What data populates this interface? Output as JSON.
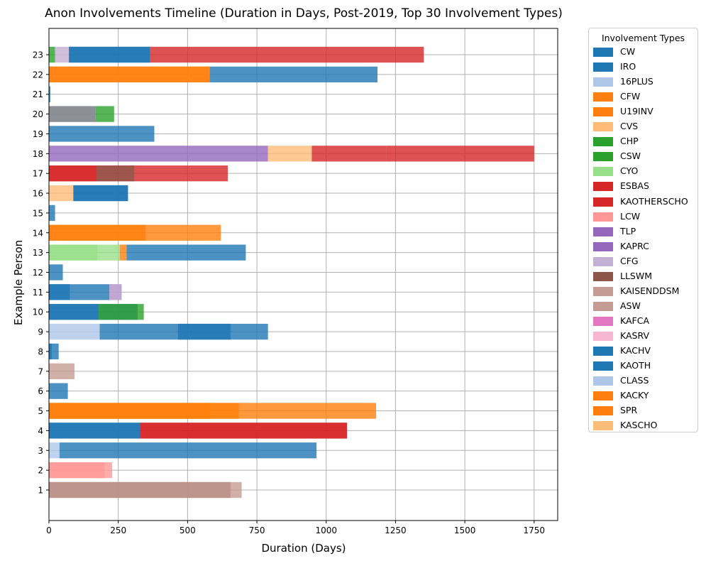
{
  "chart_data": {
    "type": "bar",
    "orientation": "horizontal-stacked-overlap",
    "title": "Anon Involvements Timeline (Duration in Days, Post-2019, Top 30 Involvement Types)",
    "xlabel": "Duration (Days)",
    "ylabel": "Example Person",
    "xlim": [
      0,
      1835
    ],
    "xticks": [
      0,
      250,
      500,
      750,
      1000,
      1250,
      1500,
      1750
    ],
    "categories": [
      "1",
      "2",
      "3",
      "4",
      "5",
      "6",
      "7",
      "8",
      "9",
      "10",
      "11",
      "12",
      "13",
      "14",
      "15",
      "16",
      "17",
      "18",
      "19",
      "20",
      "21",
      "22",
      "23"
    ],
    "grid": true,
    "legend_title": "Involvement Types",
    "legend_position": "outside-right",
    "legend": [
      {
        "label": "CW",
        "color": "#1f77b4"
      },
      {
        "label": "IRO",
        "color": "#1f77b4"
      },
      {
        "label": "16PLUS",
        "color": "#aec7e8"
      },
      {
        "label": "CFW",
        "color": "#ff7f0e"
      },
      {
        "label": "U19INV",
        "color": "#ff7f0e"
      },
      {
        "label": "CVS",
        "color": "#ffbb78"
      },
      {
        "label": "CHP",
        "color": "#2ca02c"
      },
      {
        "label": "CSW",
        "color": "#2ca02c"
      },
      {
        "label": "CYO",
        "color": "#98df8a"
      },
      {
        "label": "ESBAS",
        "color": "#d62728"
      },
      {
        "label": "KAOTHERSCHO",
        "color": "#d62728"
      },
      {
        "label": "LCW",
        "color": "#ff9896"
      },
      {
        "label": "TLP",
        "color": "#9467bd"
      },
      {
        "label": "KAPRC",
        "color": "#9467bd"
      },
      {
        "label": "CFG",
        "color": "#c5b0d5"
      },
      {
        "label": "LLSWM",
        "color": "#8c564b"
      },
      {
        "label": "KAISENDDSM",
        "color": "#c49c94"
      },
      {
        "label": "ASW",
        "color": "#c49c94"
      },
      {
        "label": "KAFCA",
        "color": "#e377c2"
      },
      {
        "label": "KASRV",
        "color": "#f7b6d2"
      },
      {
        "label": "KACHV",
        "color": "#1f77b4"
      },
      {
        "label": "KAOTH",
        "color": "#1f77b4"
      },
      {
        "label": "CLASS",
        "color": "#aec7e8"
      },
      {
        "label": "KACKY",
        "color": "#ff7f0e"
      },
      {
        "label": "SPR",
        "color": "#ff7f0e"
      },
      {
        "label": "KASCHO",
        "color": "#ffbb78"
      }
    ],
    "bars": [
      {
        "person": "1",
        "start": 0,
        "end": 655,
        "color": "#8c564b"
      },
      {
        "person": "1",
        "start": 0,
        "end": 695,
        "color": "#c49c94"
      },
      {
        "person": "2",
        "start": 0,
        "end": 200,
        "color": "#ff9896"
      },
      {
        "person": "2",
        "start": 0,
        "end": 228,
        "color": "#ff9896"
      },
      {
        "person": "3",
        "start": 0,
        "end": 38,
        "color": "#aec7e8"
      },
      {
        "person": "3",
        "start": 38,
        "end": 965,
        "color": "#1f77b4"
      },
      {
        "person": "4",
        "start": 0,
        "end": 328,
        "color": "#1f77b4"
      },
      {
        "person": "4",
        "start": 0,
        "end": 328,
        "color": "#1f77b4"
      },
      {
        "person": "4",
        "start": 328,
        "end": 1075,
        "color": "#d62728"
      },
      {
        "person": "4",
        "start": 328,
        "end": 1075,
        "color": "#d62728"
      },
      {
        "person": "5",
        "start": 0,
        "end": 580,
        "color": "#ff7f0e"
      },
      {
        "person": "5",
        "start": 0,
        "end": 685,
        "color": "#ff7f0e"
      },
      {
        "person": "5",
        "start": 0,
        "end": 1180,
        "color": "#ff7f0e"
      },
      {
        "person": "6",
        "start": 0,
        "end": 68,
        "color": "#1f77b4"
      },
      {
        "person": "7",
        "start": 0,
        "end": 92,
        "color": "#c49c94"
      },
      {
        "person": "8",
        "start": 0,
        "end": 10,
        "color": "#1f77b4"
      },
      {
        "person": "8",
        "start": 0,
        "end": 35,
        "color": "#1f77b4"
      },
      {
        "person": "9",
        "start": 0,
        "end": 183,
        "color": "#aec7e8"
      },
      {
        "person": "9",
        "start": 183,
        "end": 465,
        "color": "#1f77b4"
      },
      {
        "person": "9",
        "start": 465,
        "end": 655,
        "color": "#1f77b4"
      },
      {
        "person": "9",
        "start": 465,
        "end": 790,
        "color": "#1f77b4"
      },
      {
        "person": "10",
        "start": 0,
        "end": 178,
        "color": "#1f77b4"
      },
      {
        "person": "10",
        "start": 0,
        "end": 320,
        "color": "#1f77b4"
      },
      {
        "person": "10",
        "start": 178,
        "end": 320,
        "color": "#2ca02c"
      },
      {
        "person": "10",
        "start": 320,
        "end": 342,
        "color": "#2ca02c"
      },
      {
        "person": "11",
        "start": 0,
        "end": 75,
        "color": "#1f77b4"
      },
      {
        "person": "11",
        "start": 0,
        "end": 218,
        "color": "#1f77b4"
      },
      {
        "person": "11",
        "start": 218,
        "end": 262,
        "color": "#9467bd"
      },
      {
        "person": "11",
        "start": 218,
        "end": 262,
        "color": "#c5b0d5"
      },
      {
        "person": "12",
        "start": 0,
        "end": 50,
        "color": "#1f77b4"
      },
      {
        "person": "13",
        "start": 0,
        "end": 175,
        "color": "#98df8a"
      },
      {
        "person": "13",
        "start": 0,
        "end": 255,
        "color": "#98df8a"
      },
      {
        "person": "13",
        "start": 255,
        "end": 280,
        "color": "#ff7f0e"
      },
      {
        "person": "13",
        "start": 280,
        "end": 710,
        "color": "#1f77b4"
      },
      {
        "person": "14",
        "start": 0,
        "end": 348,
        "color": "#ff7f0e"
      },
      {
        "person": "14",
        "start": 0,
        "end": 348,
        "color": "#ff7f0e"
      },
      {
        "person": "14",
        "start": 348,
        "end": 620,
        "color": "#ff7f0e"
      },
      {
        "person": "15",
        "start": 0,
        "end": 22,
        "color": "#1f77b4"
      },
      {
        "person": "16",
        "start": 0,
        "end": 88,
        "color": "#ffbb78"
      },
      {
        "person": "16",
        "start": 88,
        "end": 285,
        "color": "#1f77b4"
      },
      {
        "person": "16",
        "start": 88,
        "end": 285,
        "color": "#1f77b4"
      },
      {
        "person": "17",
        "start": 0,
        "end": 172,
        "color": "#d62728"
      },
      {
        "person": "17",
        "start": 0,
        "end": 308,
        "color": "#d62728"
      },
      {
        "person": "17",
        "start": 172,
        "end": 308,
        "color": "#8c564b"
      },
      {
        "person": "17",
        "start": 308,
        "end": 645,
        "color": "#d62728"
      },
      {
        "person": "18",
        "start": 0,
        "end": 430,
        "color": "#9467bd"
      },
      {
        "person": "18",
        "start": 430,
        "end": 790,
        "color": "#9467bd"
      },
      {
        "person": "18",
        "start": 790,
        "end": 948,
        "color": "#ffbb78"
      },
      {
        "person": "18",
        "start": 948,
        "end": 1218,
        "color": "#d62728"
      },
      {
        "person": "18",
        "start": 1218,
        "end": 1750,
        "color": "#d62728"
      },
      {
        "person": "19",
        "start": 0,
        "end": 380,
        "color": "#1f77b4"
      },
      {
        "person": "20",
        "start": 0,
        "end": 168,
        "color": "#aec7e8"
      },
      {
        "person": "20",
        "start": 0,
        "end": 168,
        "color": "#7f7f7f"
      },
      {
        "person": "20",
        "start": 168,
        "end": 192,
        "color": "#2ca02c"
      },
      {
        "person": "20",
        "start": 192,
        "end": 235,
        "color": "#2ca02c"
      },
      {
        "person": "21",
        "start": 0,
        "end": 5,
        "color": "#1f77b4"
      },
      {
        "person": "22",
        "start": 0,
        "end": 580,
        "color": "#ff7f0e"
      },
      {
        "person": "22",
        "start": 0,
        "end": 580,
        "color": "#ff7f0e"
      },
      {
        "person": "22",
        "start": 580,
        "end": 1185,
        "color": "#1f77b4"
      },
      {
        "person": "23",
        "start": 0,
        "end": 22,
        "color": "#2ca02c"
      },
      {
        "person": "23",
        "start": 22,
        "end": 72,
        "color": "#c5b0d5"
      },
      {
        "person": "23",
        "start": 72,
        "end": 365,
        "color": "#1f77b4"
      },
      {
        "person": "23",
        "start": 72,
        "end": 365,
        "color": "#1f77b4"
      },
      {
        "person": "23",
        "start": 365,
        "end": 1352,
        "color": "#d62728"
      }
    ]
  }
}
